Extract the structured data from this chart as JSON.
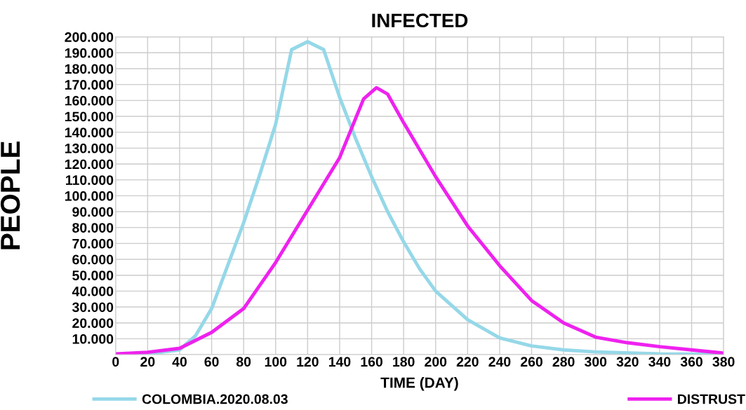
{
  "chart_data": {
    "type": "line",
    "title": "INFECTED",
    "xlabel": "TIME (DAY)",
    "ylabel": "PEOPLE",
    "xlim": [
      0,
      380
    ],
    "xticks": [
      0,
      20,
      40,
      60,
      80,
      100,
      120,
      140,
      160,
      180,
      200,
      220,
      240,
      260,
      280,
      300,
      320,
      340,
      360,
      380
    ],
    "ylim": [
      0,
      200000
    ],
    "yticks": [
      {
        "value": 0,
        "label": null
      },
      {
        "value": 10000,
        "label": "10.000"
      },
      {
        "value": 20000,
        "label": "20.000"
      },
      {
        "value": 30000,
        "label": "30.000"
      },
      {
        "value": 40000,
        "label": "40.000"
      },
      {
        "value": 50000,
        "label": "50.000"
      },
      {
        "value": 60000,
        "label": "60.000"
      },
      {
        "value": 70000,
        "label": "70.000"
      },
      {
        "value": 80000,
        "label": "80.000"
      },
      {
        "value": 90000,
        "label": "90.000"
      },
      {
        "value": 100000,
        "label": "100.000"
      },
      {
        "value": 110000,
        "label": "110.000"
      },
      {
        "value": 120000,
        "label": "120.000"
      },
      {
        "value": 130000,
        "label": "130.000"
      },
      {
        "value": 140000,
        "label": "140.000"
      },
      {
        "value": 150000,
        "label": "150.000"
      },
      {
        "value": 160000,
        "label": "160.000"
      },
      {
        "value": 170000,
        "label": "170.000"
      },
      {
        "value": 180000,
        "label": "180.000"
      },
      {
        "value": 190000,
        "label": "190.000"
      },
      {
        "value": 200000,
        "label": "200.000"
      }
    ],
    "grid": true,
    "legend": "bottom",
    "marker": "none",
    "line_style": "solid",
    "series": [
      {
        "name": "COLOMBIA.2020.08.03",
        "color": "#95d8e8",
        "x": [
          0,
          20,
          40,
          50,
          60,
          70,
          80,
          90,
          100,
          110,
          120,
          130,
          140,
          150,
          160,
          170,
          180,
          190,
          200,
          220,
          240,
          260,
          280,
          300,
          340,
          380
        ],
        "values": [
          0,
          500,
          3000,
          12000,
          29000,
          56000,
          83000,
          113000,
          145000,
          192000,
          197000,
          192000,
          162000,
          136000,
          112000,
          90000,
          71000,
          54000,
          40000,
          22000,
          10500,
          5500,
          3000,
          1700,
          500,
          200
        ]
      },
      {
        "name": "DISTRUST",
        "color": "#ee22ee",
        "x": [
          0,
          20,
          40,
          60,
          80,
          100,
          120,
          140,
          155,
          163,
          170,
          180,
          200,
          220,
          240,
          260,
          280,
          300,
          320,
          340,
          360,
          380
        ],
        "values": [
          500,
          1500,
          4000,
          14000,
          29000,
          58000,
          91000,
          124000,
          161000,
          168000,
          164000,
          146000,
          112000,
          81000,
          56000,
          34000,
          20000,
          11000,
          7500,
          5000,
          3000,
          1000
        ]
      }
    ]
  }
}
